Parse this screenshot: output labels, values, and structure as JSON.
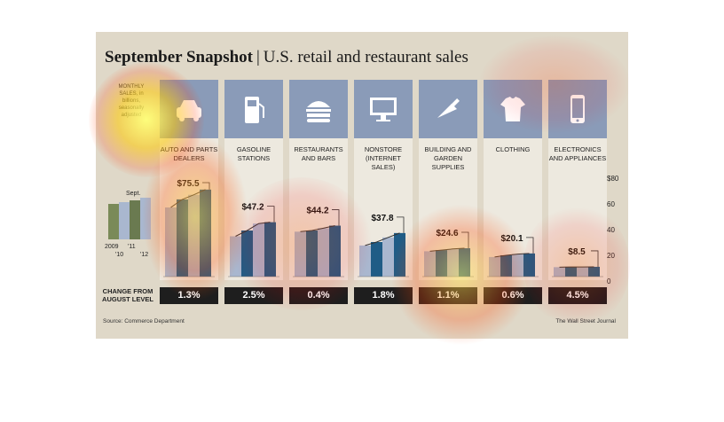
{
  "title": "September Snapshot",
  "title_separator": "|",
  "subtitle": "U.S. retail and restaurant sales",
  "monthly_label": "MONTHLY SALES, in billions, seasonally adjusted",
  "legend_label_sept": "Sept.",
  "legend_years": [
    "2009",
    "'10",
    "'11",
    "'12"
  ],
  "change_label": "CHANGE FROM AUGUST LEVEL",
  "source": "Source: Commerce Department",
  "credit": "The Wall Street Journal",
  "colors": {
    "bar_dark": "#1f5c86",
    "bar_light": "#a9b7cf",
    "panel": "#dfd8c8",
    "column": "#ede9df",
    "icon_bg": "#8a9bb8",
    "change_bg": "#1e1e1e"
  },
  "chart_data": {
    "type": "bar",
    "ylim": [
      0,
      80
    ],
    "yticks": [
      "$80",
      "60",
      "40",
      "20",
      "0"
    ],
    "years": [
      "2009",
      "'10",
      "'11",
      "'12"
    ],
    "categories": [
      {
        "name": "AUTO AND PARTS DEALERS",
        "icon": "car-icon",
        "sept_value": 75.5,
        "value_label": "$75.5",
        "change": "1.3%",
        "yearly": [
          60,
          67,
          71,
          75.5
        ]
      },
      {
        "name": "GASOLINE STATIONS",
        "icon": "gas-pump-icon",
        "sept_value": 47.2,
        "value_label": "$47.2",
        "change": "2.5%",
        "yearly": [
          35,
          40,
          46,
          47.2
        ]
      },
      {
        "name": "RESTAURANTS AND BARS",
        "icon": "burger-icon",
        "sept_value": 44.2,
        "value_label": "$44.2",
        "change": "0.4%",
        "yearly": [
          39,
          40,
          42,
          44.2
        ]
      },
      {
        "name": "NONSTORE (INTERNET SALES)",
        "icon": "computer-icon",
        "sept_value": 37.8,
        "value_label": "$37.8",
        "change": "1.8%",
        "yearly": [
          27,
          30,
          34,
          37.8
        ]
      },
      {
        "name": "BUILDING AND GARDEN SUPPLIES",
        "icon": "trowel-icon",
        "sept_value": 24.6,
        "value_label": "$24.6",
        "change": "1.1%",
        "yearly": [
          22,
          23,
          24,
          24.6
        ]
      },
      {
        "name": "CLOTHING",
        "icon": "shirt-icon",
        "sept_value": 20.1,
        "value_label": "$20.1",
        "change": "0.6%",
        "yearly": [
          17,
          18.5,
          19.5,
          20.1
        ]
      },
      {
        "name": "ELECTRONICS AND APPLIANCES",
        "icon": "phone-icon",
        "sept_value": 8.5,
        "value_label": "$8.5",
        "change": "4.5%",
        "yearly": [
          8.2,
          8.4,
          8.4,
          8.5
        ]
      }
    ]
  }
}
